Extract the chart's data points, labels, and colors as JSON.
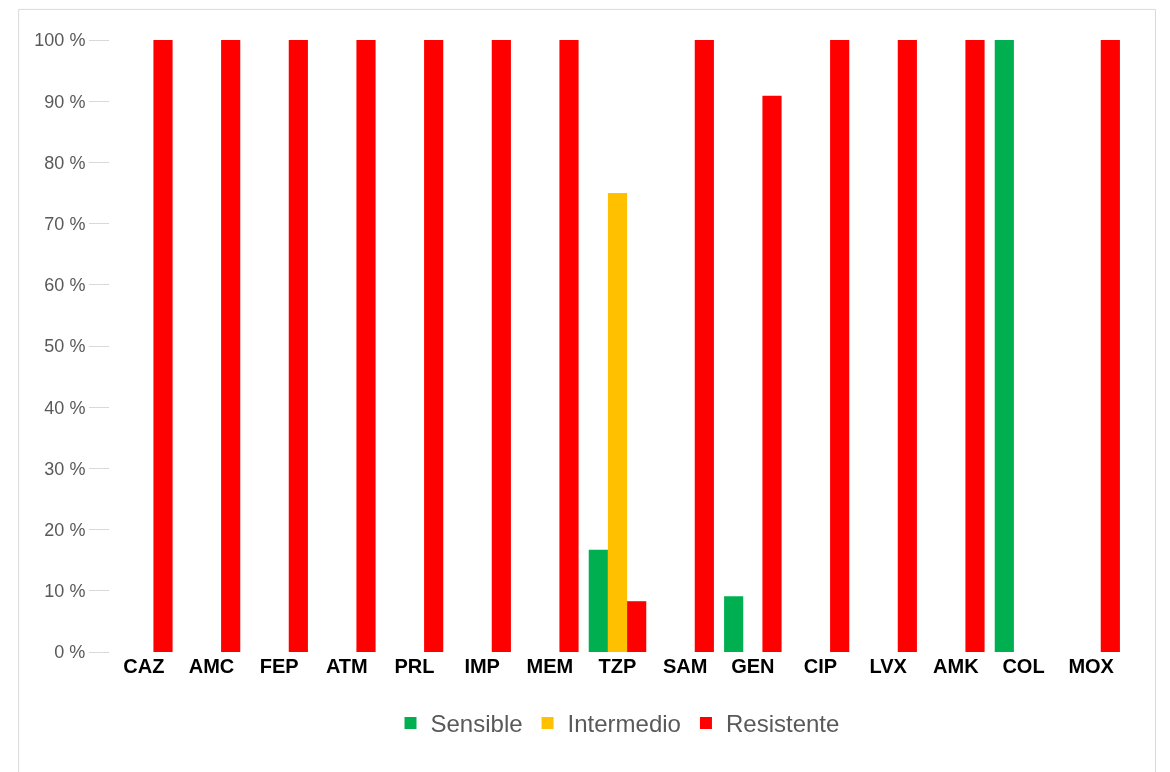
{
  "chart_data": {
    "type": "bar",
    "categories": [
      "CAZ",
      "AMC",
      "FEP",
      "ATM",
      "PRL",
      "IMP",
      "MEM",
      "TZP",
      "SAM",
      "GEN",
      "CIP",
      "LVX",
      "AMK",
      "COL",
      "MOX"
    ],
    "series": [
      {
        "name": "Sensible",
        "color": "#00b050",
        "values": [
          null,
          null,
          null,
          null,
          null,
          null,
          null,
          16.7,
          null,
          9.1,
          null,
          null,
          null,
          100,
          null
        ]
      },
      {
        "name": "Intermedio",
        "color": "#ffc000",
        "values": [
          null,
          null,
          null,
          null,
          null,
          null,
          null,
          75,
          null,
          null,
          null,
          null,
          null,
          null,
          null
        ]
      },
      {
        "name": "Resistente",
        "color": "#ff0000",
        "values": [
          100,
          100,
          100,
          100,
          100,
          100,
          100,
          8.3,
          100,
          90.9,
          100,
          100,
          100,
          null,
          100
        ]
      }
    ],
    "ylim": [
      0,
      100
    ],
    "yticks": [
      {
        "value": 0,
        "label": "0 %"
      },
      {
        "value": 10,
        "label": "10 %"
      },
      {
        "value": 20,
        "label": "20 %"
      },
      {
        "value": 30,
        "label": "30 %"
      },
      {
        "value": 40,
        "label": "40 %"
      },
      {
        "value": 50,
        "label": "50 %"
      },
      {
        "value": 60,
        "label": "60 %"
      },
      {
        "value": 70,
        "label": "70 %"
      },
      {
        "value": 80,
        "label": "80 %"
      },
      {
        "value": 90,
        "label": "90 %"
      },
      {
        "value": 100,
        "label": "100 %"
      }
    ],
    "grid": false,
    "legend": "bottom"
  }
}
